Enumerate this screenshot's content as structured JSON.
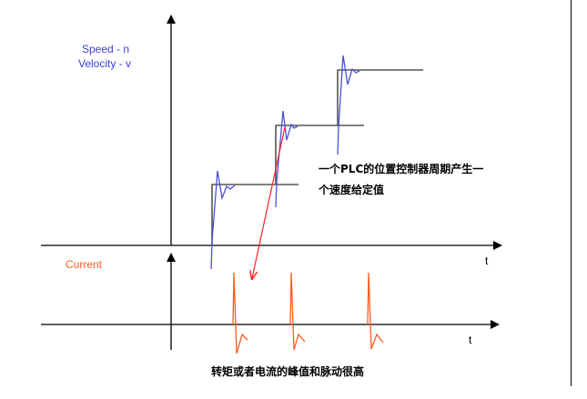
{
  "labels": {
    "speed": "Speed - n",
    "velocity": "Velocity - v",
    "current": "Current",
    "t_upper": "t",
    "t_lower": "t",
    "annotation_line1": "一个PLC的位置控制器周期产生一",
    "annotation_line2": "个速度给定值",
    "caption": "转矩或者电流的峰值和脉动很高"
  },
  "colors": {
    "axis": "#000000",
    "setpoint": "#555555",
    "velocity_trace": "#4b4fd6",
    "current_trace": "#ff5a1f",
    "annotation_arrow": "#ff2020",
    "velocity_label": "#3b3fd8",
    "current_label": "#ff5a1f"
  }
}
